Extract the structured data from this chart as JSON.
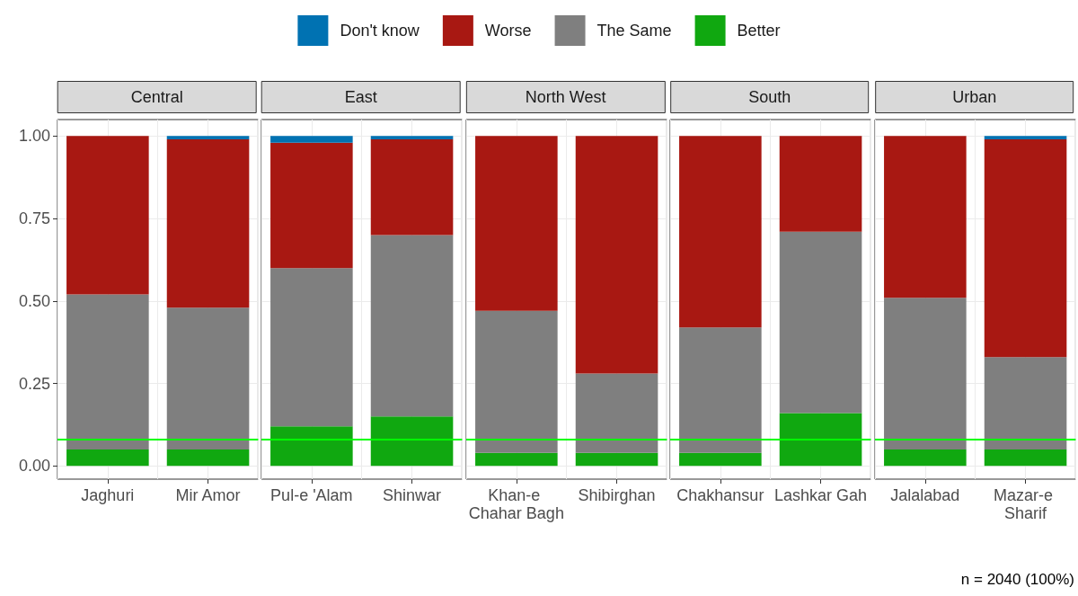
{
  "chart_data": [
    {
      "type": "bar",
      "title": "Central",
      "categories": [
        "Jaghuri",
        "Mir Amor"
      ],
      "stacked": true,
      "legend": "top",
      "grid": true,
      "ylim": [
        -0.04,
        1.05
      ],
      "yticks": [
        {
          "value": 0,
          "label": "0.00"
        },
        0.25,
        {
          "value": 0.5,
          "label": "0.50"
        },
        0.75,
        {
          "value": 1,
          "label": "1.00"
        }
      ],
      "ref_lines": [
        {
          "axis": "y",
          "value": 0.083,
          "color": "#00ff00"
        }
      ],
      "series": [
        {
          "name": "Better",
          "color": "#10a810",
          "values": [
            0.05,
            0.05
          ]
        },
        {
          "name": "The Same",
          "color": "#7f7f7f",
          "values": [
            0.47,
            0.43
          ]
        },
        {
          "name": "Worse",
          "color": "#a81812",
          "values": [
            0.48,
            0.51
          ]
        },
        {
          "name": "Don't know",
          "color": "#0072b2",
          "values": [
            0,
            0.01
          ]
        }
      ]
    },
    {
      "type": "bar",
      "title": "East",
      "categories": [
        "Pul-e 'Alam",
        "Shinwar"
      ],
      "stacked": true,
      "grid": true,
      "tick_labels": "x",
      "ylim": [
        -0.04,
        1.05
      ],
      "yticks": [
        0,
        0.25,
        0.5,
        0.75,
        1
      ],
      "ref_lines": [
        {
          "axis": "y",
          "value": 0.083,
          "color": "#00ff00"
        }
      ],
      "series": [
        {
          "color": "#10a810",
          "values": [
            0.12,
            0.15
          ]
        },
        {
          "color": "#7f7f7f",
          "values": [
            0.48,
            0.55
          ]
        },
        {
          "color": "#a81812",
          "values": [
            0.38,
            0.29
          ]
        },
        {
          "color": "#0072b2",
          "values": [
            0.02,
            0.01
          ]
        }
      ]
    },
    {
      "type": "bar",
      "title": "North West",
      "categories": [
        "Khan-e Chahar Bagh",
        "Shibirghan"
      ],
      "stacked": true,
      "grid": true,
      "tick_labels": "x",
      "ylim": [
        -0.04,
        1.05
      ],
      "yticks": [
        0,
        0.25,
        0.5,
        0.75,
        1
      ],
      "ref_lines": [
        {
          "axis": "y",
          "value": 0.083,
          "color": "#00ff00"
        }
      ],
      "series": [
        {
          "color": "#10a810",
          "values": [
            0.04,
            0.04
          ]
        },
        {
          "color": "#7f7f7f",
          "values": [
            0.43,
            0.24
          ]
        },
        {
          "color": "#a81812",
          "values": [
            0.53,
            0.72
          ]
        },
        {
          "color": "#0072b2",
          "values": [
            0,
            0
          ]
        }
      ]
    },
    {
      "type": "bar",
      "title": "South",
      "categories": [
        "Chakhansur",
        "Lashkar Gah"
      ],
      "stacked": true,
      "grid": true,
      "tick_labels": "x",
      "ylim": [
        -0.04,
        1.05
      ],
      "yticks": [
        0,
        0.25,
        0.5,
        0.75,
        1
      ],
      "ref_lines": [
        {
          "axis": "y",
          "value": 0.083,
          "color": "#00ff00"
        }
      ],
      "series": [
        {
          "color": "#10a810",
          "values": [
            0.04,
            0.16
          ]
        },
        {
          "color": "#7f7f7f",
          "values": [
            0.38,
            0.55
          ]
        },
        {
          "color": "#a81812",
          "values": [
            0.58,
            0.29
          ]
        },
        {
          "color": "#0072b2",
          "values": [
            0,
            0
          ]
        }
      ]
    },
    {
      "type": "bar",
      "title": "Urban",
      "categories": [
        "Jalalabad",
        "Mazar-e Sharif"
      ],
      "stacked": true,
      "grid": true,
      "tick_labels": "x",
      "ylim": [
        -0.04,
        1.05
      ],
      "yticks": [
        0,
        0.25,
        0.5,
        0.75,
        1
      ],
      "ref_lines": [
        {
          "axis": "y",
          "value": 0.083,
          "color": "#00ff00"
        }
      ],
      "annotations": [
        "n = 2040 (100%)"
      ],
      "series": [
        {
          "color": "#10a810",
          "values": [
            0.05,
            0.05
          ]
        },
        {
          "color": "#7f7f7f",
          "values": [
            0.46,
            0.28
          ]
        },
        {
          "color": "#a81812",
          "values": [
            0.49,
            0.66
          ]
        },
        {
          "color": "#0072b2",
          "values": [
            0,
            0.01
          ]
        }
      ]
    }
  ]
}
